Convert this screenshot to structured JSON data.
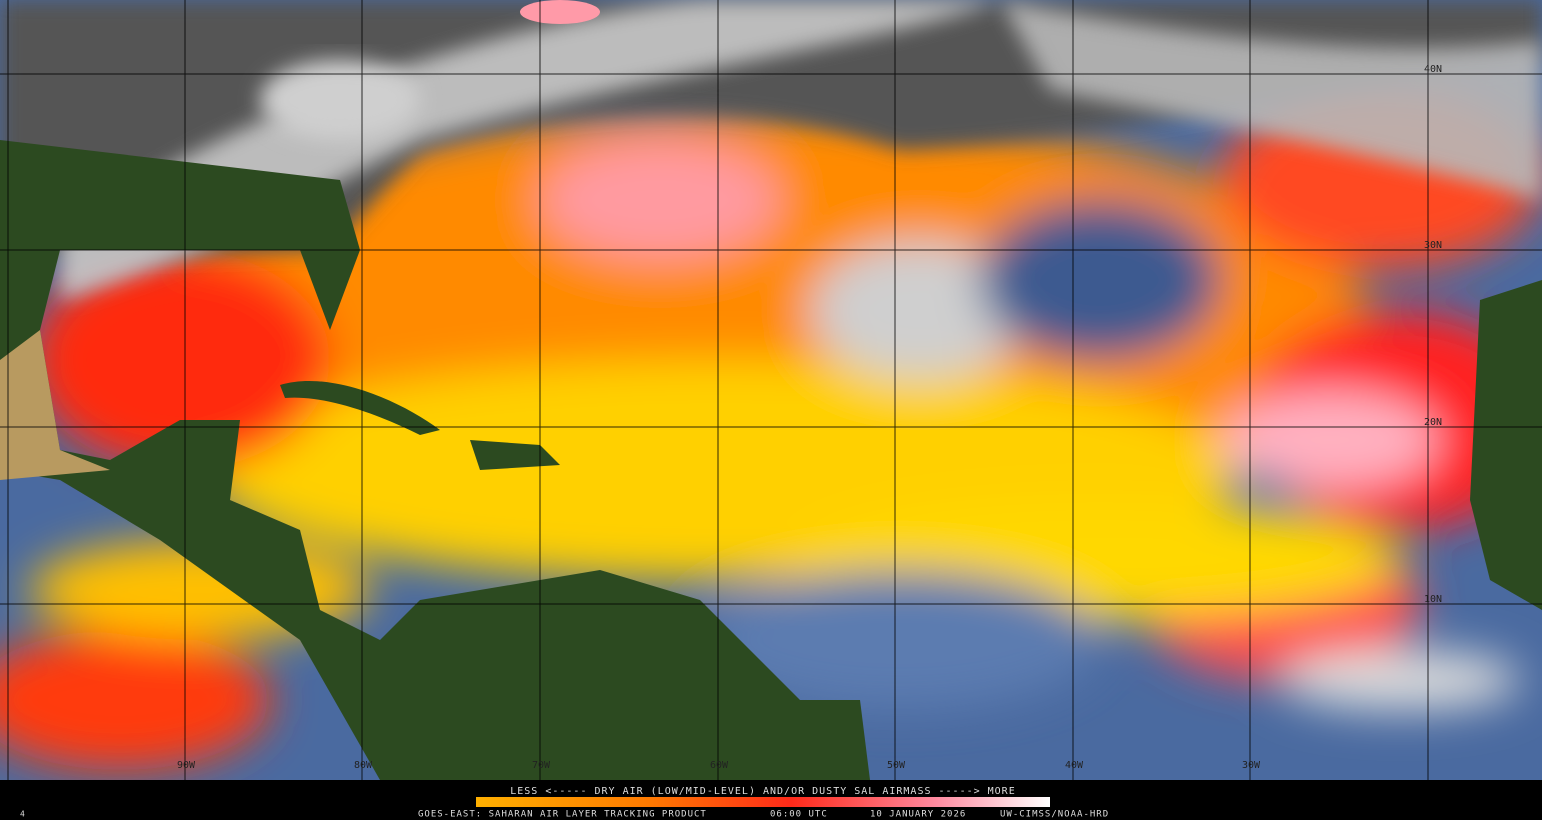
{
  "map": {
    "lat_labels": [
      "40N",
      "30N",
      "20N",
      "10N"
    ],
    "lon_labels": [
      "90W",
      "80W",
      "70W",
      "60W",
      "50W",
      "40W",
      "30W"
    ]
  },
  "legend": {
    "caption": "LESS <----- DRY AIR (LOW/MID-LEVEL) AND/OR DUSTY SAL AIRMASS -----> MORE"
  },
  "footer": {
    "frame": "4",
    "product": "GOES-EAST: SAHARAN AIR LAYER TRACKING PRODUCT",
    "time": "06:00 UTC",
    "date": "10 JANUARY 2026",
    "credit": "UW-CIMSS/NOAA-HRD"
  }
}
